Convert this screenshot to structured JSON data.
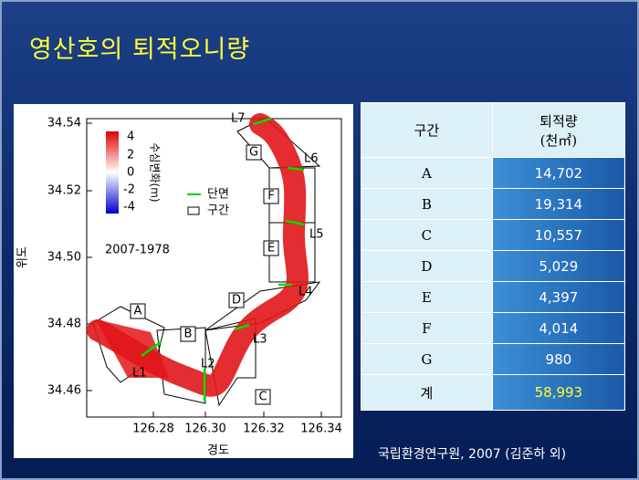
{
  "title": "영산호의  퇴적오니량",
  "figure": {
    "ylabel": "위도",
    "xlabel": "경도",
    "yticks": [
      "34.54",
      "34.52",
      "34.50",
      "34.48",
      "34.46"
    ],
    "xticks": [
      "126.28",
      "126.30",
      "126.32",
      "126.34"
    ],
    "colorbar_labels": [
      "4",
      "2",
      "0",
      "-2",
      "-4"
    ],
    "colorbar_title": "수심변화(m)",
    "legend": [
      "단면",
      "구간"
    ],
    "period": "2007-1978",
    "sections": [
      "A",
      "B",
      "C",
      "D",
      "E",
      "F",
      "G"
    ],
    "lines": [
      "L1",
      "L2",
      "L3",
      "L4",
      "L5",
      "L6",
      "L7"
    ]
  },
  "table": {
    "header": [
      "구간",
      "퇴적량",
      "(천㎥)"
    ],
    "rows": [
      [
        "A",
        "14,702"
      ],
      [
        "B",
        "19,314"
      ],
      [
        "C",
        "10,557"
      ],
      [
        "D",
        "5,029"
      ],
      [
        "E",
        "4,397"
      ],
      [
        "F",
        "4,014"
      ],
      [
        "G",
        "980"
      ],
      [
        "계",
        "58,993"
      ]
    ]
  },
  "source": "국립환경연구원, 2007 (김준하 외)"
}
